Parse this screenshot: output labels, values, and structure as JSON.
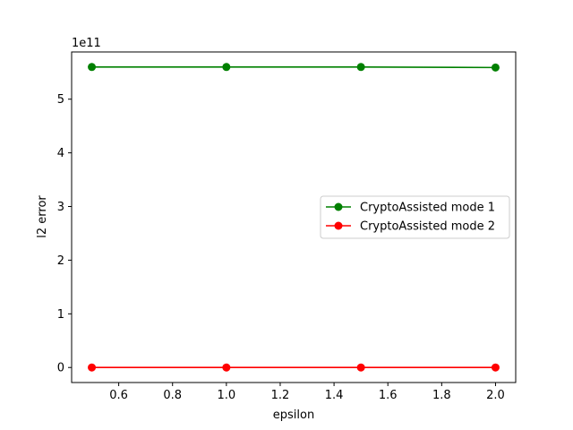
{
  "chart_data": {
    "type": "line",
    "title": "",
    "xlabel": "epsilon",
    "ylabel": "l2 error",
    "y_offset_label": "1e11",
    "xlim": [
      0.425,
      2.075
    ],
    "ylim": [
      -0.28,
      5.88
    ],
    "x_ticks": [
      0.6,
      0.8,
      1.0,
      1.2,
      1.4,
      1.6,
      1.8,
      2.0
    ],
    "x_tick_labels": [
      "0.6",
      "0.8",
      "1.0",
      "1.2",
      "1.4",
      "1.6",
      "1.8",
      "2.0"
    ],
    "y_ticks": [
      0,
      1,
      2,
      3,
      4,
      5
    ],
    "y_tick_labels": [
      "0",
      "1",
      "2",
      "3",
      "4",
      "5"
    ],
    "grid": false,
    "legend_position": "center-right",
    "x": [
      0.5,
      1.0,
      1.5,
      2.0
    ],
    "series": [
      {
        "name": "CryptoAssisted mode 1",
        "color": "#008000",
        "values": [
          5.6,
          5.6,
          5.6,
          5.59
        ]
      },
      {
        "name": "CryptoAssisted mode 2",
        "color": "#ff0000",
        "values": [
          0.0,
          0.0,
          0.0,
          0.0
        ]
      }
    ]
  }
}
